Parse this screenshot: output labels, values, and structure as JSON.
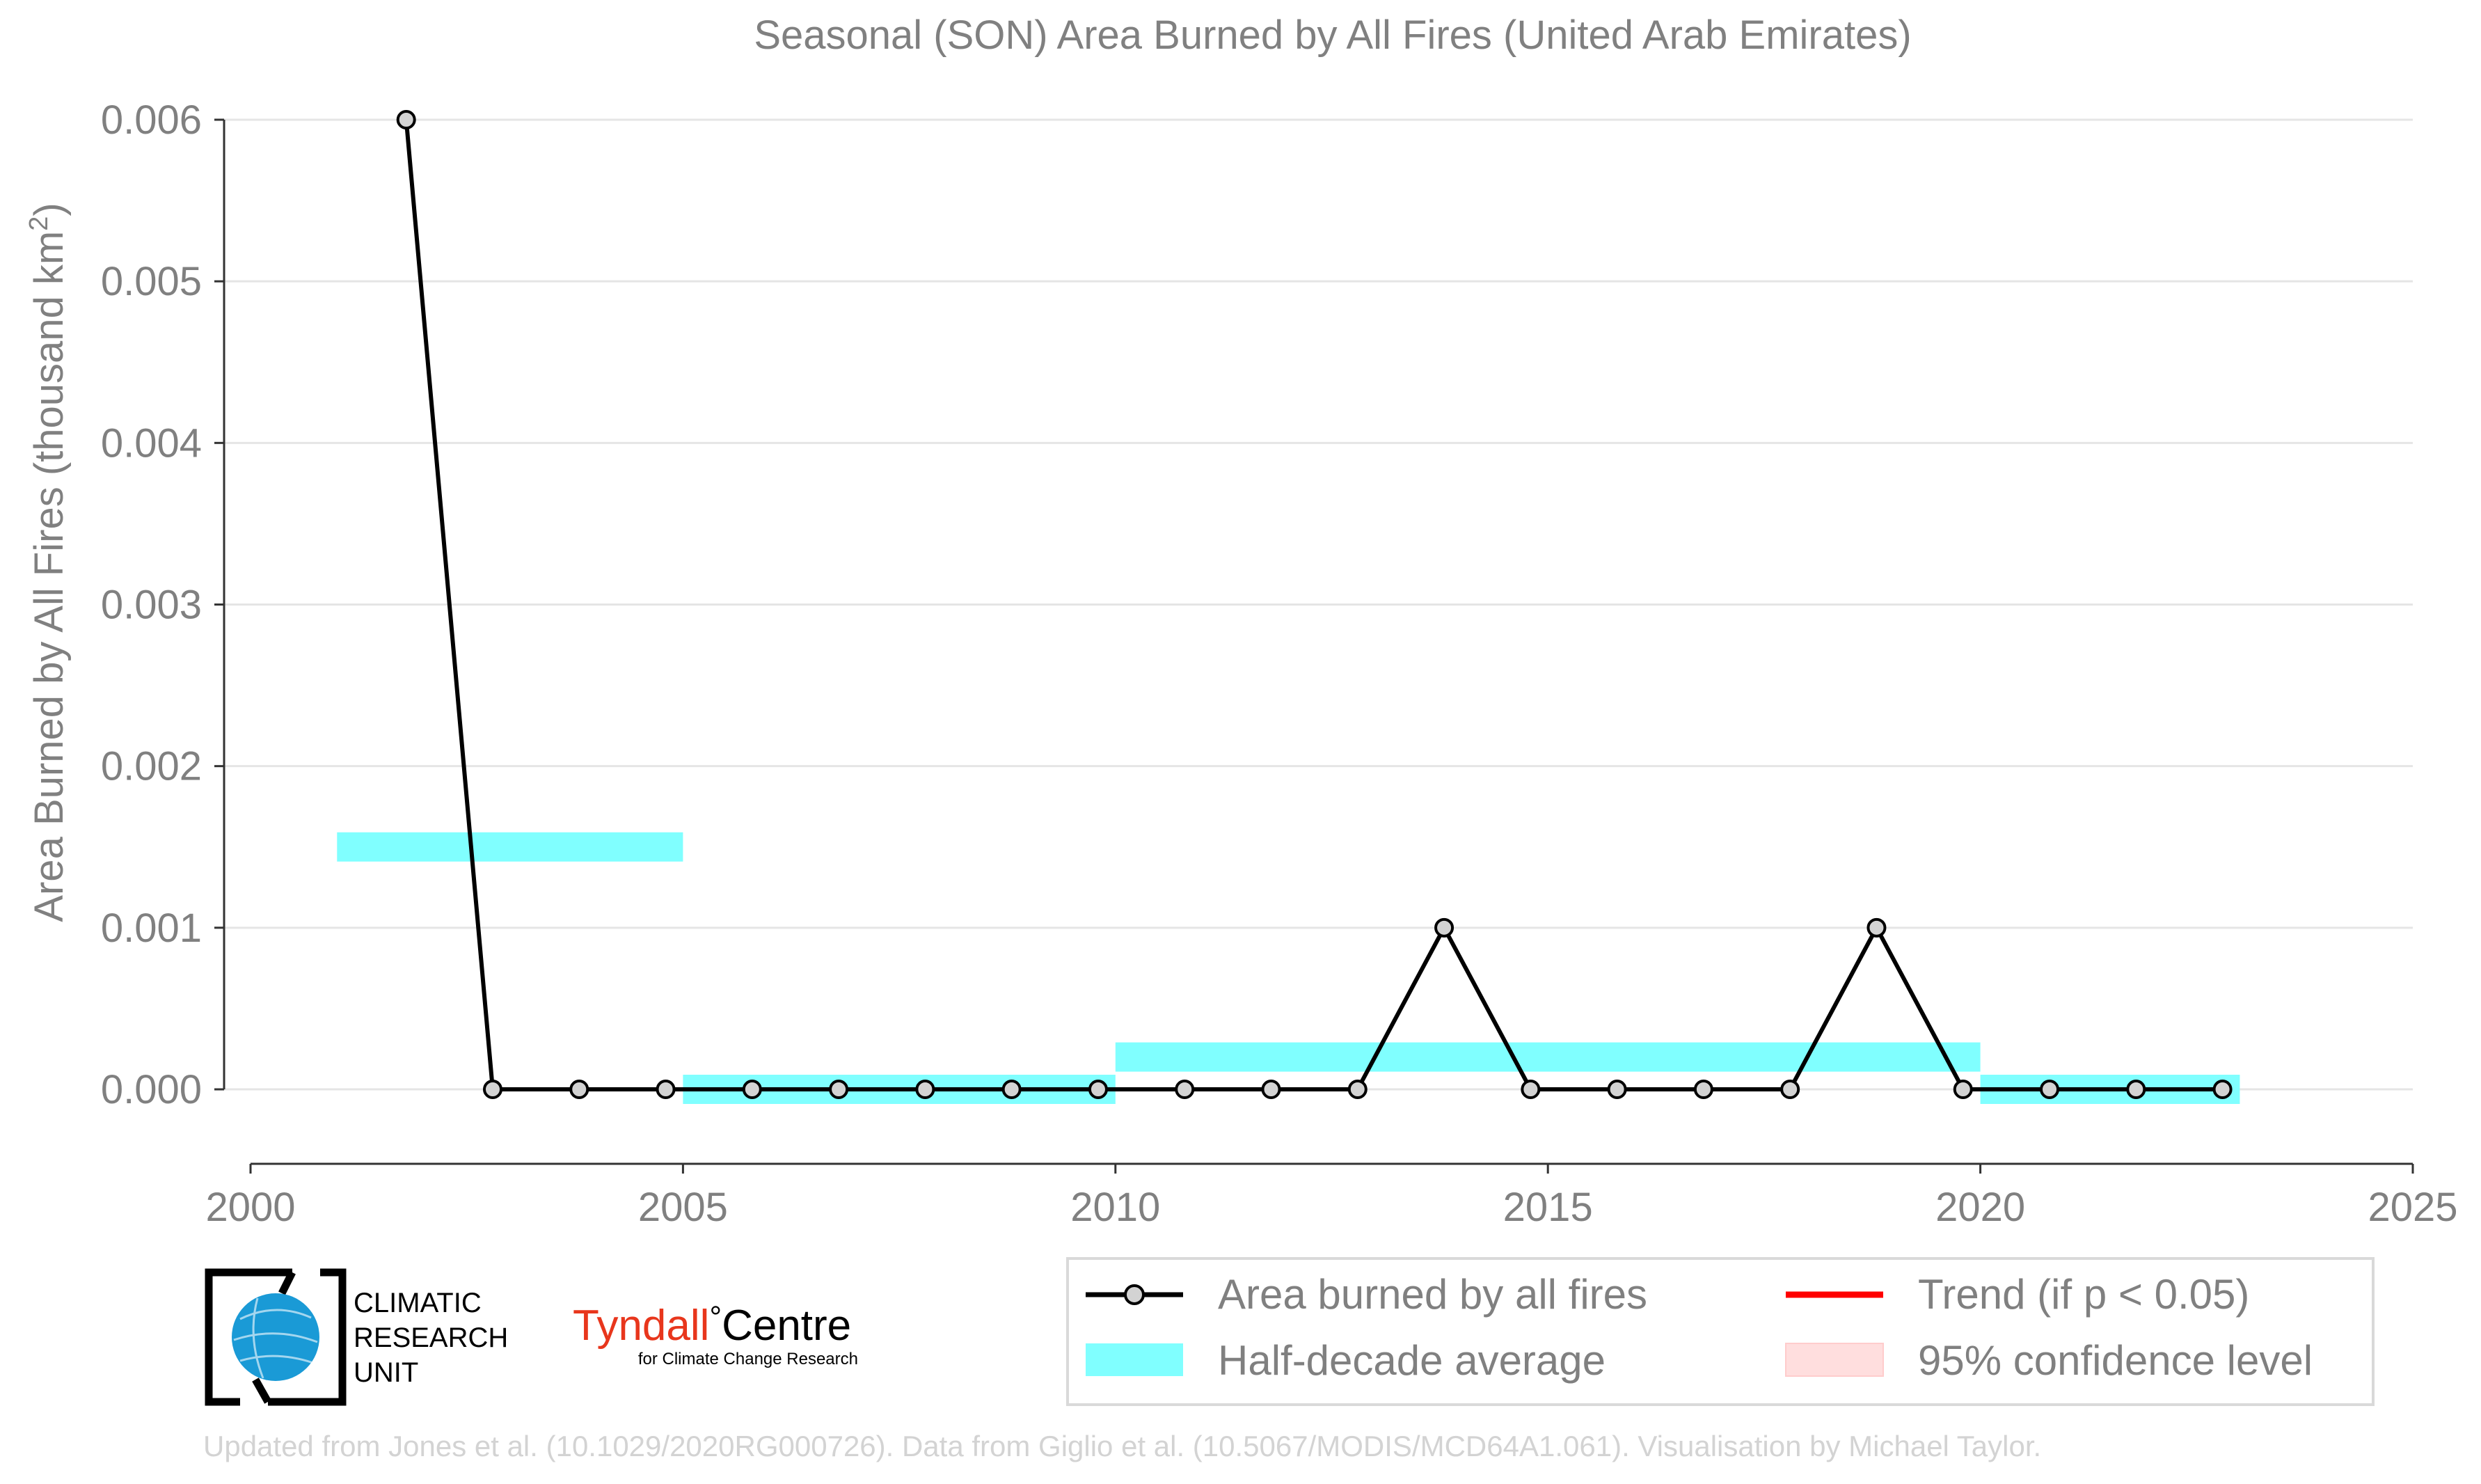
{
  "chart_data": {
    "type": "line",
    "title": "Seasonal (SON) Area Burned by All Fires (United Arab Emirates)",
    "ylabel": "Area Burned by All Fires (thousand km",
    "ylabel_sup": "2",
    "ylabel_end": ")",
    "xlim": [
      2000,
      2025
    ],
    "ylim": [
      -0.00045,
      0.006
    ],
    "x_ticks": [
      2000,
      2005,
      2010,
      2015,
      2020,
      2025
    ],
    "x_tick_labels": [
      "2000",
      "2005",
      "2010",
      "2015",
      "2020",
      "2025"
    ],
    "y_ticks": [
      0,
      0.001,
      0.002,
      0.003,
      0.004,
      0.005,
      0.006
    ],
    "y_tick_labels": [
      "0.000",
      "0.001",
      "0.002",
      "0.003",
      "0.004",
      "0.005",
      "0.006"
    ],
    "grid": "horizontal",
    "series": [
      {
        "name": "Area burned by all fires",
        "color": "#000000",
        "marker_fill": "#d3d3d3",
        "x": [
          2001.8,
          2002.8,
          2003.8,
          2004.8,
          2005.8,
          2006.8,
          2007.8,
          2008.8,
          2009.8,
          2010.8,
          2011.8,
          2012.8,
          2013.8,
          2014.8,
          2015.8,
          2016.8,
          2017.8,
          2018.8,
          2019.8,
          2020.8,
          2021.8,
          2022.8
        ],
        "y": [
          0.006,
          0,
          0,
          0,
          0,
          0,
          0,
          0,
          0,
          0,
          0,
          0,
          0.001,
          0,
          0,
          0,
          0,
          0.001,
          0,
          0,
          0,
          0
        ]
      }
    ],
    "half_decade_average": {
      "name": "Half-decade average",
      "color": "#80ffff",
      "segments": [
        {
          "x0": 2001,
          "x1": 2005,
          "y": 0.0015
        },
        {
          "x0": 2005,
          "x1": 2010,
          "y": 0.0
        },
        {
          "x0": 2010,
          "x1": 2020,
          "y": 0.0002
        },
        {
          "x0": 2020,
          "x1": 2023,
          "y": 0.0
        }
      ]
    },
    "legend": {
      "placement": "bottom-right",
      "entries": [
        {
          "label": "Area burned by all fires",
          "kind": "line-marker",
          "color": "#000000"
        },
        {
          "label": "Trend (if p < 0.05)",
          "kind": "line",
          "color": "#ff0000"
        },
        {
          "label": "Half-decade average",
          "kind": "patch",
          "color": "#80ffff"
        },
        {
          "label": "95% confidence level",
          "kind": "patch",
          "color": "#ffdede"
        }
      ]
    }
  },
  "logos": {
    "cru_line1": "CLIMATIC",
    "cru_line2": "RESEARCH",
    "cru_line3": "UNIT",
    "tyndall_main": "Tyndall",
    "tyndall_degree": "°",
    "tyndall_centre": "Centre",
    "tyndall_sub": "for Climate Change Research"
  },
  "footer": "Updated from Jones et al. (10.1029/2020RG000726). Data from Giglio et al. (10.5067/MODIS/MCD64A1.061). Visualisation by Michael Taylor.",
  "colors": {
    "text_gray": "#808080",
    "grid": "#e5e5e5",
    "footer_gray": "#d3d3d3",
    "cru_blue": "#1a9ad6",
    "tyndall_red": "#e8361c"
  }
}
